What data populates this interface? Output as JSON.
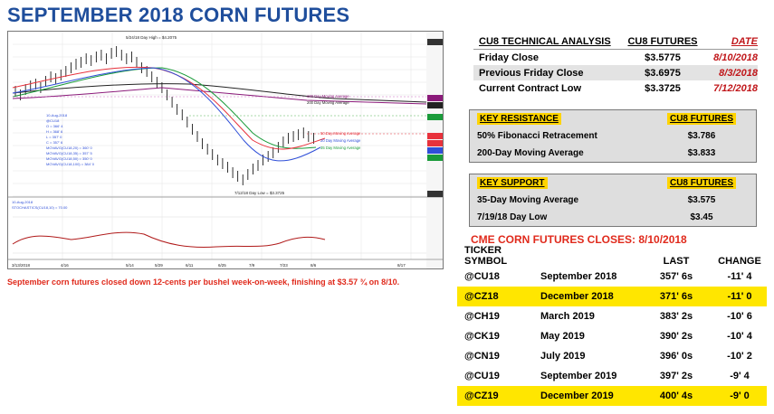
{
  "title": "SEPTEMBER 2018 CORN FUTURES",
  "caption": "September corn futures closed down 12-cents per bushel week-on-week, finishing at $3.57 ¾ on 8/10.",
  "technical": {
    "headers": [
      "CU8 TECHNICAL ANALYSIS",
      "CU8 FUTURES",
      "DATE"
    ],
    "rows": [
      {
        "label": "Friday Close",
        "value": "$3.5775",
        "date": "8/10/2018"
      },
      {
        "label": "Previous Friday Close",
        "value": "$3.6975",
        "date": "8/3/2018"
      },
      {
        "label": "Current Contract Low",
        "value": "$3.3725",
        "date": "7/12/2018"
      }
    ]
  },
  "resistance": {
    "headers": [
      "KEY RESISTANCE",
      "CU8 FUTURES"
    ],
    "rows": [
      {
        "label": "50% Fibonacci Retracement",
        "value": "$3.786"
      },
      {
        "label": "200-Day Moving Average",
        "value": "$3.833"
      }
    ]
  },
  "support": {
    "headers": [
      "KEY SUPPORT",
      "CU8 FUTURES"
    ],
    "rows": [
      {
        "label": "35-Day Moving Average",
        "value": "$3.575"
      },
      {
        "label": "7/19/18 Day Low",
        "value": "$3.45"
      }
    ]
  },
  "closes": {
    "title": "CME CORN FUTURES CLOSES: 8/10/2018",
    "headers": [
      "TICKER SYMBOL",
      "",
      "LAST",
      "CHANGE"
    ],
    "rows": [
      {
        "ticker": "@CU18",
        "month": "September 2018",
        "last": "357' 6s",
        "change": "-11' 4",
        "highlight": false
      },
      {
        "ticker": "@CZ18",
        "month": "December 2018",
        "last": "371' 6s",
        "change": "-11' 0",
        "highlight": true
      },
      {
        "ticker": "@CH19",
        "month": "March 2019",
        "last": "383' 2s",
        "change": "-10' 6",
        "highlight": false
      },
      {
        "ticker": "@CK19",
        "month": "May 2019",
        "last": "390' 2s",
        "change": "-10' 4",
        "highlight": false
      },
      {
        "ticker": "@CN19",
        "month": "July 2019",
        "last": "396' 0s",
        "change": "-10' 2",
        "highlight": false
      },
      {
        "ticker": "@CU19",
        "month": "September 2019",
        "last": "397' 2s",
        "change": "-9' 4",
        "highlight": false
      },
      {
        "ticker": "@CZ19",
        "month": "December 2019",
        "last": "400' 4s",
        "change": "-9' 0",
        "highlight": true
      }
    ]
  },
  "chart": {
    "high_label": "5/24/18 Day High = $4.2075",
    "low_label": "7/12/18 Day Low = $3.3725",
    "ma_labels": [
      "100 Day Moving Average",
      "200 Day Moving Average",
      "50 Day Moving Average",
      "20 Day Moving Average",
      "35 Day Moving Average"
    ],
    "date_labels": [
      "3/13/2018",
      "4/16",
      "5/14",
      "5/29",
      "6/11",
      "6/25",
      "7/9",
      "7/23",
      "8/6",
      "8/17"
    ],
    "colors": {
      "price": "#000000",
      "ma20": "#e8323c",
      "ma35": "#2f4fd8",
      "ma50": "#1a9b3a",
      "ma100": "#8b1a7a",
      "ma200": "#222222",
      "osc": "#b01a1a"
    }
  }
}
